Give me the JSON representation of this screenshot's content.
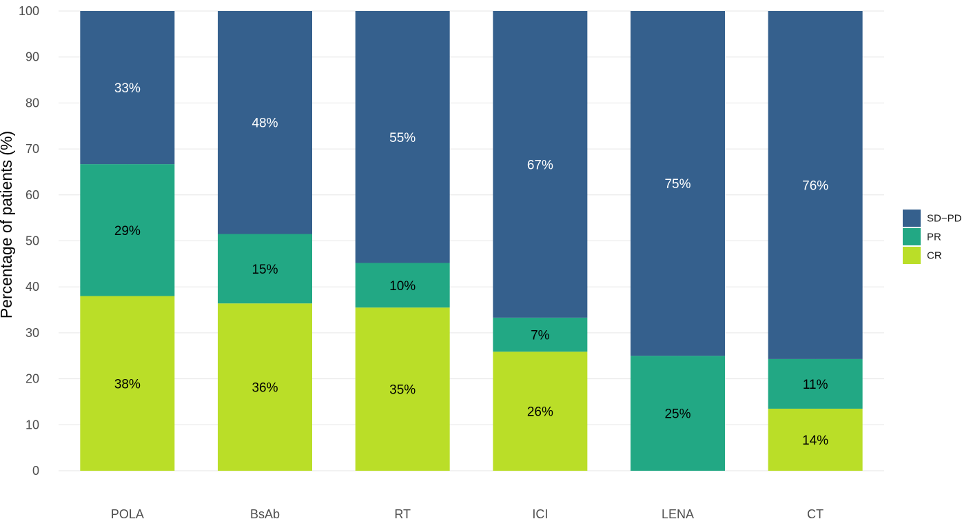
{
  "chart_data": {
    "type": "bar",
    "stacked": true,
    "title": "",
    "xlabel": "",
    "ylabel": "Percentage of patients (%)",
    "ylim": [
      0,
      100
    ],
    "yticks": [
      0,
      10,
      20,
      30,
      40,
      50,
      60,
      70,
      80,
      90,
      100
    ],
    "grid": true,
    "legend_position": "right",
    "categories": [
      "POLA",
      "BsAb",
      "RT",
      "ICI",
      "LENA",
      "CT"
    ],
    "series": [
      {
        "name": "CR",
        "color": "#bade28",
        "label_color": "#000000",
        "values": [
          38,
          36.4,
          35.5,
          25.9,
          0,
          13.5
        ],
        "labels": [
          "38%",
          "36%",
          "35%",
          "26%",
          "",
          "14%"
        ]
      },
      {
        "name": "PR",
        "color": "#22a884",
        "label_color": "#000000",
        "values": [
          28.7,
          15.1,
          9.7,
          7.4,
          25,
          10.8
        ],
        "labels": [
          "29%",
          "15%",
          "10%",
          "7%",
          "25%",
          "11%"
        ]
      },
      {
        "name": "SD−PD",
        "color": "#35608d",
        "label_color": "#ffffff",
        "values": [
          33.3,
          48.5,
          54.8,
          66.7,
          75,
          75.7
        ],
        "labels": [
          "33%",
          "48%",
          "55%",
          "67%",
          "75%",
          "76%"
        ]
      }
    ],
    "legend_order": [
      "SD−PD",
      "PR",
      "CR"
    ]
  }
}
